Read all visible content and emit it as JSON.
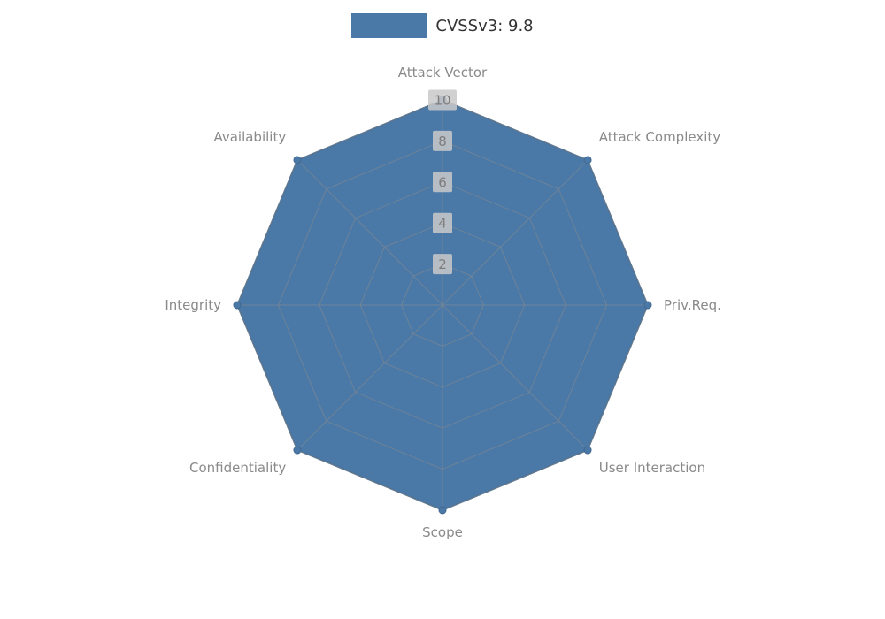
{
  "chart_data": {
    "type": "radar",
    "title": "",
    "legend_label": "CVSSv3: 9.8",
    "legend_position": "top-center",
    "categories": [
      "Attack Vector",
      "Attack Complexity",
      "Priv.Req.",
      "User Interaction",
      "Scope",
      "Confidentiality",
      "Integrity",
      "Availability"
    ],
    "series": [
      {
        "name": "CVSSv3: 9.8",
        "values": [
          10,
          10,
          10,
          10,
          10,
          10,
          10,
          10
        ]
      }
    ],
    "ticks": [
      2,
      4,
      6,
      8,
      10
    ],
    "rlim": [
      0,
      10
    ],
    "grid": true,
    "colors": {
      "fill": "#4a79a8",
      "outline": "#41688f",
      "grid": "#8a8a8a",
      "axis_label": "#8a8a8a",
      "tick_label": "#7d7d7d",
      "tick_bg": "#c9c9c9",
      "legend_text": "#333333",
      "background": "#ffffff"
    }
  }
}
